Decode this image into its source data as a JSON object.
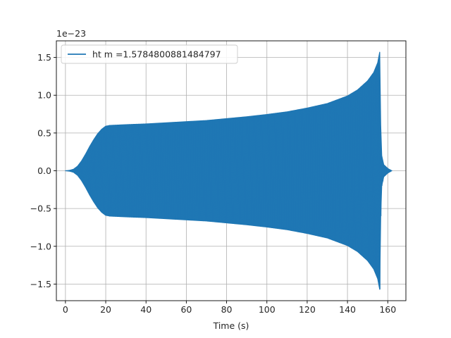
{
  "chart_data": {
    "type": "line",
    "title": "",
    "xlabel": "Time (s)",
    "ylabel": "",
    "y_offset_label": "1e−23",
    "xlim": [
      -4.5,
      169
    ],
    "ylim": [
      -1.72,
      1.72
    ],
    "x_ticks": [
      0,
      20,
      40,
      60,
      80,
      100,
      120,
      140,
      160
    ],
    "x_tick_labels": [
      "0",
      "20",
      "40",
      "60",
      "80",
      "100",
      "120",
      "140",
      "160"
    ],
    "y_ticks": [
      -1.5,
      -1.0,
      -0.5,
      0.0,
      0.5,
      1.0,
      1.5
    ],
    "y_tick_labels": [
      "−1.5",
      "−1.0",
      "−0.5",
      "0.0",
      "0.5",
      "1.0",
      "1.5"
    ],
    "grid": true,
    "legend_position": "top-left",
    "series": [
      {
        "name": "ht m =1.5784800881484797",
        "color": "#1f77b4",
        "x_range": [
          0,
          162
        ],
        "envelope_upper": [
          [
            0,
            0.0
          ],
          [
            2,
            0.005
          ],
          [
            4,
            0.02
          ],
          [
            6,
            0.06
          ],
          [
            8,
            0.13
          ],
          [
            10,
            0.22
          ],
          [
            12,
            0.32
          ],
          [
            14,
            0.41
          ],
          [
            16,
            0.49
          ],
          [
            18,
            0.55
          ],
          [
            20,
            0.59
          ],
          [
            22,
            0.6
          ],
          [
            30,
            0.61
          ],
          [
            40,
            0.62
          ],
          [
            50,
            0.635
          ],
          [
            60,
            0.65
          ],
          [
            70,
            0.665
          ],
          [
            80,
            0.69
          ],
          [
            90,
            0.715
          ],
          [
            100,
            0.745
          ],
          [
            110,
            0.78
          ],
          [
            120,
            0.83
          ],
          [
            130,
            0.89
          ],
          [
            140,
            0.99
          ],
          [
            145,
            1.07
          ],
          [
            150,
            1.19
          ],
          [
            153,
            1.3
          ],
          [
            155,
            1.43
          ],
          [
            156,
            1.57
          ],
          [
            156.5,
            0.6
          ],
          [
            157,
            0.2
          ],
          [
            158,
            0.08
          ],
          [
            160,
            0.03
          ],
          [
            162,
            0.0
          ]
        ],
        "envelope_lower": [
          [
            0,
            0.0
          ],
          [
            2,
            -0.005
          ],
          [
            4,
            -0.02
          ],
          [
            6,
            -0.06
          ],
          [
            8,
            -0.13
          ],
          [
            10,
            -0.22
          ],
          [
            12,
            -0.32
          ],
          [
            14,
            -0.41
          ],
          [
            16,
            -0.49
          ],
          [
            18,
            -0.55
          ],
          [
            20,
            -0.59
          ],
          [
            22,
            -0.6
          ],
          [
            30,
            -0.61
          ],
          [
            40,
            -0.62
          ],
          [
            50,
            -0.635
          ],
          [
            60,
            -0.65
          ],
          [
            70,
            -0.665
          ],
          [
            80,
            -0.69
          ],
          [
            90,
            -0.715
          ],
          [
            100,
            -0.745
          ],
          [
            110,
            -0.78
          ],
          [
            120,
            -0.83
          ],
          [
            130,
            -0.89
          ],
          [
            140,
            -0.99
          ],
          [
            145,
            -1.07
          ],
          [
            150,
            -1.19
          ],
          [
            153,
            -1.3
          ],
          [
            155,
            -1.43
          ],
          [
            156,
            -1.57
          ],
          [
            156.5,
            -0.6
          ],
          [
            157,
            -0.2
          ],
          [
            158,
            -0.08
          ],
          [
            160,
            -0.03
          ],
          [
            162,
            0.0
          ]
        ]
      }
    ]
  }
}
